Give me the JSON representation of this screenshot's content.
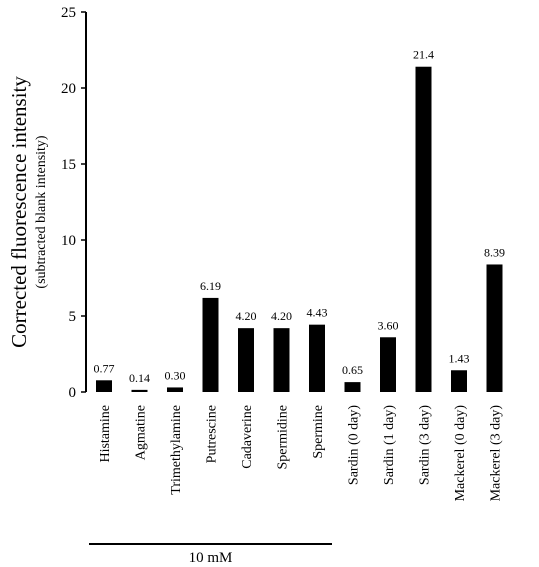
{
  "chart_data": {
    "type": "bar",
    "ylabel": "Corrected fluorescence intensity",
    "ylabel_sub": "(subtracted blank intensity)",
    "ylim": [
      0,
      25
    ],
    "yticks": [
      "0",
      "5",
      "10",
      "15",
      "20",
      "25"
    ],
    "categories": [
      "Histamine",
      "Agmatine",
      "Trimethylamine",
      "Putrescine",
      "Cadaverine",
      "Spermidine",
      "Spermine",
      "Sardin (0 day)",
      "Sardin (1 day)",
      "Sardin (3 day)",
      "Mackerel (0 day)",
      "Mackerel (3 day)"
    ],
    "values": [
      0.77,
      0.14,
      0.3,
      6.19,
      4.2,
      4.2,
      4.43,
      0.65,
      3.6,
      21.4,
      1.43,
      8.39
    ],
    "value_labels": [
      "0.77",
      "0.14",
      "0.30",
      "6.19",
      "4.20",
      "4.20",
      "4.43",
      "0.65",
      "3.60",
      "21.4",
      "1.43",
      "8.39"
    ],
    "bar_color": "#000000",
    "grid": false,
    "group_bracket": {
      "label": "10 mM",
      "from": 0,
      "to": 6
    }
  }
}
